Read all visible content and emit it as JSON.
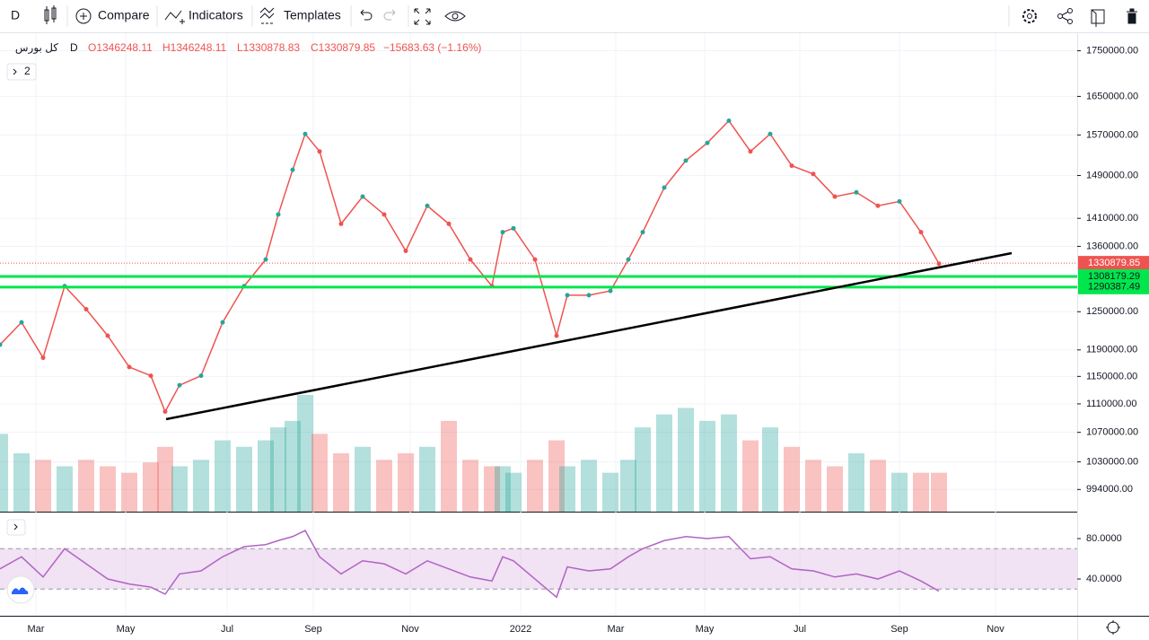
{
  "toolbar": {
    "interval": "D",
    "buttons": [
      "Compare",
      "Indicators",
      "Templates"
    ]
  },
  "legend": {
    "symbol": "کل بورس",
    "interval": "D",
    "open": "O1346248.11",
    "high": "H1346248.11",
    "low": "L1330878.83",
    "close": "C1330879.85",
    "change": "−15683.63 (−1.16%)",
    "indicator_count": "2"
  },
  "chart_data": [
    {
      "type": "line",
      "log_scale": true,
      "up_color": "#26a69a",
      "down_color": "#ef5350",
      "x": [
        0,
        24,
        48,
        72,
        96,
        120,
        144,
        168,
        184,
        200,
        224,
        248,
        272,
        296,
        310,
        326,
        340,
        356,
        380,
        404,
        428,
        452,
        476,
        500,
        524,
        548,
        560,
        572,
        596,
        620,
        632,
        656,
        680,
        700,
        716,
        740,
        764,
        788,
        812,
        836,
        858,
        882,
        906,
        930,
        954,
        978,
        1002,
        1026,
        1046
      ],
      "series": [
        {
          "color": "#ef5350",
          "values": [
            1198000,
            1233000,
            1178000,
            1292000,
            1254000,
            1212000,
            1164000,
            1151000,
            1099000,
            1137000,
            1151000,
            1233000,
            1292000,
            1337000,
            1417000,
            1501000,
            1572000,
            1537000,
            1400000,
            1450000,
            1417000,
            1352000,
            1433000,
            1400000,
            1337000,
            1292000,
            1385000,
            1392000,
            1337000,
            1212000,
            1277000,
            1277000,
            1284000,
            1337000,
            1385000,
            1467000,
            1519000,
            1554000,
            1599000,
            1537000,
            1572000,
            1509000,
            1493000,
            1450000,
            1458000,
            1433000,
            1441000,
            1385000,
            1330000
          ]
        }
      ],
      "volume": [
        60,
        45,
        40,
        35,
        40,
        35,
        30,
        38,
        50,
        35,
        40,
        55,
        50,
        55,
        65,
        70,
        90,
        60,
        45,
        50,
        40,
        45,
        50,
        70,
        40,
        35,
        35,
        30,
        40,
        55,
        35,
        40,
        30,
        40,
        65,
        75,
        80,
        70,
        75,
        55,
        65,
        50,
        40,
        35,
        45,
        40,
        30,
        30,
        30
      ],
      "xlim": [
        0,
        1200
      ],
      "xticks": [
        {
          "value": 40,
          "label": "Mar"
        },
        {
          "value": 140,
          "label": "May"
        },
        {
          "value": 253,
          "label": "Jul"
        },
        {
          "value": 349,
          "label": "Sep"
        },
        {
          "value": 457,
          "label": "Nov"
        },
        {
          "value": 580,
          "label": "2022"
        },
        {
          "value": 686,
          "label": "Mar"
        },
        {
          "value": 785,
          "label": "May"
        },
        {
          "value": 891,
          "label": "Jul"
        },
        {
          "value": 1002,
          "label": "Sep"
        },
        {
          "value": 1109,
          "label": "Nov"
        }
      ],
      "ylim": [
        966000,
        1788000
      ],
      "yticks": [
        {
          "value": 1750000,
          "label": "1750000.00"
        },
        {
          "value": 1650000,
          "label": "1650000.00"
        },
        {
          "value": 1570000,
          "label": "1570000.00"
        },
        {
          "value": 1490000,
          "label": "1490000.00"
        },
        {
          "value": 1410000,
          "label": "1410000.00"
        },
        {
          "value": 1360000,
          "label": "1360000.00"
        },
        {
          "value": 1250000,
          "label": "1250000.00"
        },
        {
          "value": 1190000,
          "label": "1190000.00"
        },
        {
          "value": 1150000,
          "label": "1150000.00"
        },
        {
          "value": 1110000,
          "label": "1110000.00"
        },
        {
          "value": 1070000,
          "label": "1070000.00"
        },
        {
          "value": 1030000,
          "label": "1030000.00"
        },
        {
          "value": 994000,
          "label": "994000.00"
        }
      ],
      "price_lines": [
        {
          "value": 1330879.85,
          "color": "#ef5350"
        },
        {
          "value": 1308179.29,
          "color": "#00e64d"
        },
        {
          "value": 1290387.49,
          "color": "#00e64d"
        }
      ],
      "grid": true
    },
    {
      "type": "line",
      "x": [
        0,
        24,
        48,
        72,
        96,
        120,
        144,
        168,
        184,
        200,
        224,
        248,
        272,
        296,
        310,
        326,
        340,
        356,
        380,
        404,
        428,
        452,
        476,
        500,
        524,
        548,
        560,
        572,
        596,
        620,
        632,
        656,
        680,
        700,
        716,
        740,
        764,
        788,
        812,
        836,
        858,
        882,
        906,
        930,
        954,
        978,
        1002,
        1026,
        1046
      ],
      "series": [
        {
          "color": "#b163c4",
          "values": [
            50,
            62,
            42,
            70,
            55,
            40,
            35,
            32,
            25,
            45,
            48,
            62,
            72,
            74,
            78,
            82,
            88,
            62,
            45,
            58,
            55,
            45,
            58,
            50,
            42,
            38,
            62,
            58,
            40,
            22,
            52,
            48,
            50,
            62,
            70,
            78,
            82,
            80,
            82,
            60,
            62,
            50,
            48,
            42,
            45,
            40,
            48,
            38,
            28
          ]
        }
      ],
      "xlim": [
        0,
        1200
      ],
      "ylim": [
        3.6,
        104.9
      ],
      "yticks": [
        {
          "value": 80,
          "label": "80.0000"
        },
        {
          "value": 40,
          "label": "40.0000"
        }
      ],
      "bands": [
        30,
        70
      ],
      "band_color": "#e1bee7"
    }
  ]
}
